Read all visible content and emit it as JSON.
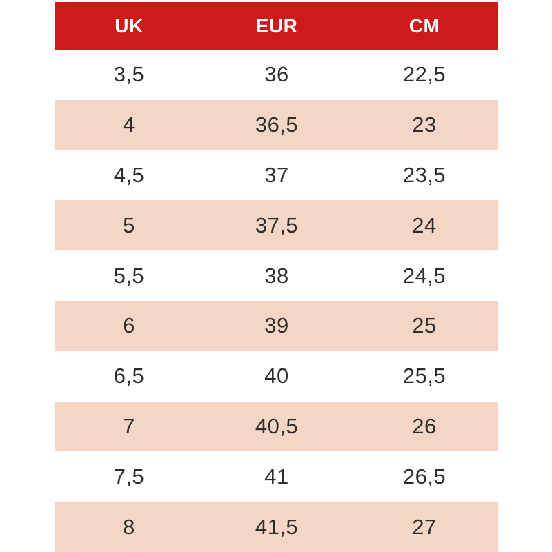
{
  "chart_data": {
    "type": "table",
    "columns": [
      "UK",
      "EUR",
      "CM"
    ],
    "rows": [
      [
        "3,5",
        "36",
        "22,5"
      ],
      [
        "4",
        "36,5",
        "23"
      ],
      [
        "4,5",
        "37",
        "23,5"
      ],
      [
        "5",
        "37,5",
        "24"
      ],
      [
        "5,5",
        "38",
        "24,5"
      ],
      [
        "6",
        "39",
        "25"
      ],
      [
        "6,5",
        "40",
        "25,5"
      ],
      [
        "7",
        "40,5",
        "26"
      ],
      [
        "7,5",
        "41",
        "26,5"
      ],
      [
        "8",
        "41,5",
        "27"
      ]
    ],
    "layout": {
      "legend": "none",
      "grid": "off",
      "row_striping": "alternating"
    }
  },
  "colors": {
    "header_bg": "#ce1a1b",
    "header_text": "#ffffff",
    "row_bg": "#ffffff",
    "row_alt_bg": "#f5d6c6",
    "cell_text": "#2d2d2d"
  }
}
